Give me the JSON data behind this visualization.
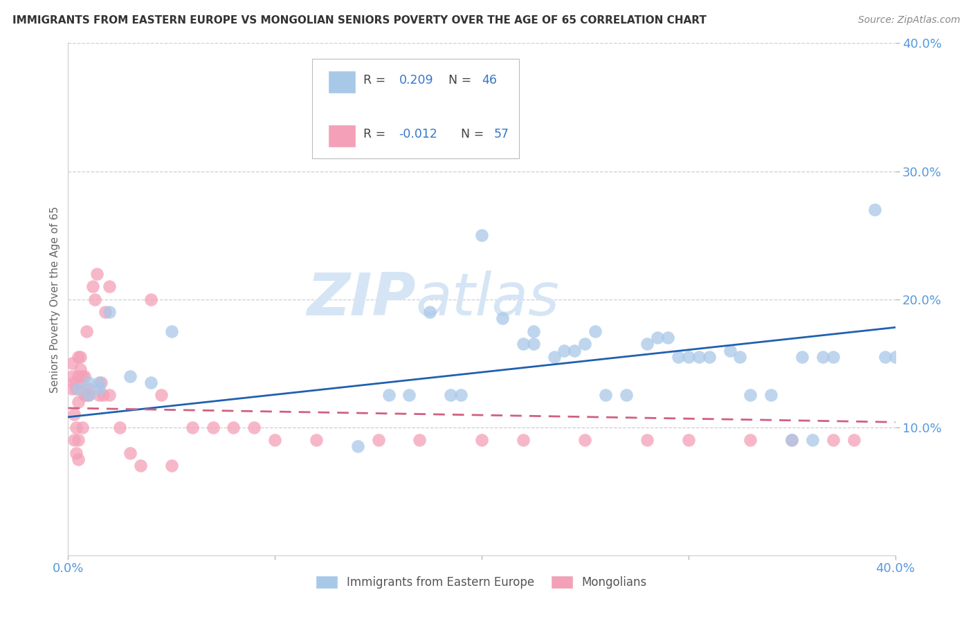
{
  "title": "IMMIGRANTS FROM EASTERN EUROPE VS MONGOLIAN SENIORS POVERTY OVER THE AGE OF 65 CORRELATION CHART",
  "source": "Source: ZipAtlas.com",
  "ylabel": "Seniors Poverty Over the Age of 65",
  "legend_blue_label": "Immigrants from Eastern Europe",
  "legend_pink_label": "Mongolians",
  "blue_R": "0.209",
  "blue_N": "46",
  "pink_R": "-0.012",
  "pink_N": "57",
  "blue_color": "#A8C8E8",
  "pink_color": "#F4A0B8",
  "blue_line_color": "#2060B0",
  "pink_line_color": "#D06080",
  "title_color": "#333333",
  "source_color": "#888888",
  "tick_color": "#5599DD",
  "ylabel_color": "#666666",
  "grid_color": "#CCCCDD",
  "watermark_color": "#D5E5F5",
  "xlim": [
    0.0,
    0.4
  ],
  "ylim": [
    0.0,
    0.4
  ],
  "blue_scatter_x": [
    0.005,
    0.01,
    0.01,
    0.015,
    0.015,
    0.02,
    0.03,
    0.04,
    0.05,
    0.14,
    0.155,
    0.165,
    0.175,
    0.185,
    0.19,
    0.2,
    0.21,
    0.22,
    0.225,
    0.225,
    0.235,
    0.24,
    0.245,
    0.25,
    0.255,
    0.26,
    0.27,
    0.28,
    0.285,
    0.29,
    0.295,
    0.3,
    0.305,
    0.31,
    0.32,
    0.325,
    0.33,
    0.34,
    0.35,
    0.355,
    0.36,
    0.365,
    0.37,
    0.39,
    0.395,
    0.4
  ],
  "blue_scatter_y": [
    0.13,
    0.125,
    0.135,
    0.13,
    0.135,
    0.19,
    0.14,
    0.135,
    0.175,
    0.085,
    0.125,
    0.125,
    0.19,
    0.125,
    0.125,
    0.25,
    0.185,
    0.165,
    0.165,
    0.175,
    0.155,
    0.16,
    0.16,
    0.165,
    0.175,
    0.125,
    0.125,
    0.165,
    0.17,
    0.17,
    0.155,
    0.155,
    0.155,
    0.155,
    0.16,
    0.155,
    0.125,
    0.125,
    0.09,
    0.155,
    0.09,
    0.155,
    0.155,
    0.27,
    0.155,
    0.155
  ],
  "pink_scatter_x": [
    0.002,
    0.002,
    0.002,
    0.003,
    0.003,
    0.003,
    0.004,
    0.004,
    0.004,
    0.005,
    0.005,
    0.005,
    0.005,
    0.005,
    0.006,
    0.006,
    0.006,
    0.007,
    0.007,
    0.008,
    0.008,
    0.009,
    0.009,
    0.01,
    0.01,
    0.012,
    0.013,
    0.014,
    0.015,
    0.016,
    0.017,
    0.018,
    0.02,
    0.02,
    0.025,
    0.03,
    0.035,
    0.04,
    0.045,
    0.05,
    0.06,
    0.07,
    0.08,
    0.09,
    0.1,
    0.12,
    0.15,
    0.17,
    0.2,
    0.22,
    0.25,
    0.28,
    0.3,
    0.33,
    0.35,
    0.37,
    0.38
  ],
  "pink_scatter_y": [
    0.13,
    0.14,
    0.15,
    0.09,
    0.11,
    0.135,
    0.08,
    0.1,
    0.13,
    0.075,
    0.09,
    0.12,
    0.14,
    0.155,
    0.135,
    0.145,
    0.155,
    0.1,
    0.14,
    0.125,
    0.14,
    0.125,
    0.175,
    0.125,
    0.13,
    0.21,
    0.2,
    0.22,
    0.125,
    0.135,
    0.125,
    0.19,
    0.125,
    0.21,
    0.1,
    0.08,
    0.07,
    0.2,
    0.125,
    0.07,
    0.1,
    0.1,
    0.1,
    0.1,
    0.09,
    0.09,
    0.09,
    0.09,
    0.09,
    0.09,
    0.09,
    0.09,
    0.09,
    0.09,
    0.09,
    0.09,
    0.09
  ],
  "blue_trend_x": [
    0.0,
    0.4
  ],
  "blue_trend_y": [
    0.108,
    0.178
  ],
  "pink_trend_x": [
    0.0,
    0.4
  ],
  "pink_trend_y": [
    0.115,
    0.104
  ]
}
